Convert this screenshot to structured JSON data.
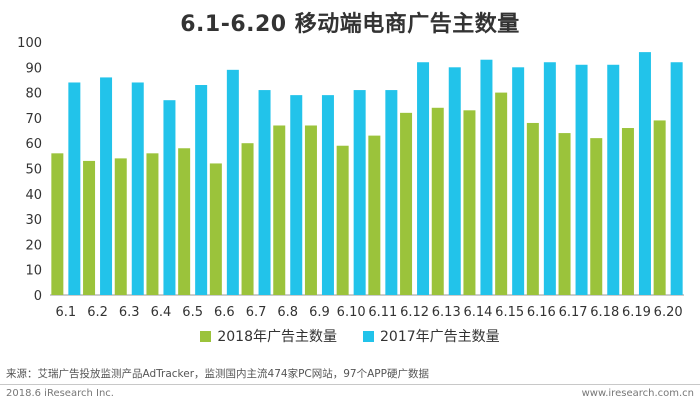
{
  "title": "6.1-6.20 移动端电商广告主数量",
  "colors": {
    "series_2018": "#9bc33b",
    "series_2017": "#22c3ea",
    "axis": "#999999"
  },
  "legend": {
    "series_2018": "2018年广告主数量",
    "series_2017": "2017年广告主数量"
  },
  "footer": {
    "source": "来源：艾瑞广告投放监测产品AdTracker，监测国内主流474家PC网站，97个APP硬广数据",
    "left": "2018.6 iResearch Inc.",
    "right": "www.iresearch.com.cn"
  },
  "chart_data": {
    "type": "bar",
    "title": "6.1-6.20 移动端电商广告主数量",
    "categories": [
      "6.1",
      "6.2",
      "6.3",
      "6.4",
      "6.5",
      "6.6",
      "6.7",
      "6.8",
      "6.9",
      "6.10",
      "6.11",
      "6.12",
      "6.13",
      "6.14",
      "6.15",
      "6.16",
      "6.17",
      "6.18",
      "6.19",
      "6.20"
    ],
    "series": [
      {
        "name": "2018年广告主数量",
        "values": [
          56,
          53,
          54,
          56,
          58,
          52,
          60,
          67,
          67,
          59,
          63,
          72,
          74,
          73,
          80,
          68,
          64,
          62,
          66,
          69
        ]
      },
      {
        "name": "2017年广告主数量",
        "values": [
          84,
          86,
          84,
          77,
          83,
          89,
          81,
          79,
          79,
          81,
          81,
          92,
          90,
          93,
          90,
          92,
          91,
          91,
          96,
          92
        ]
      }
    ],
    "ylim": [
      0,
      100
    ],
    "yticks": [
      0,
      10,
      20,
      30,
      40,
      50,
      60,
      70,
      80,
      90,
      100
    ],
    "grid": false,
    "legend_position": "bottom"
  }
}
